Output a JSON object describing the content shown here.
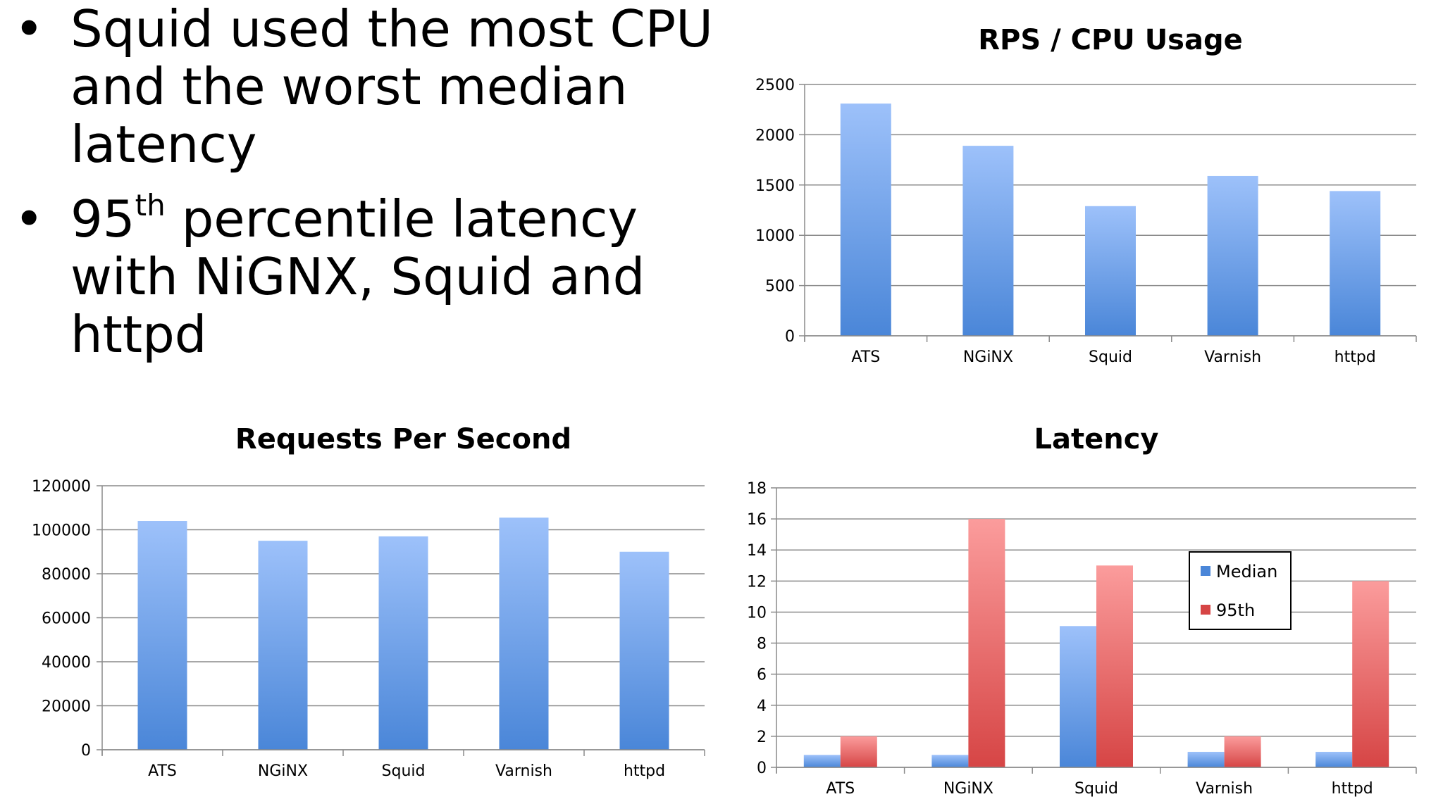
{
  "bullets": [
    {
      "text": "Squid used the most CPU and the worst median latency"
    },
    {
      "pre": "95",
      "sup": "th",
      "post": " percentile latency with NiGNX, Squid and httpd"
    }
  ],
  "colors": {
    "blue": "#4a86d8",
    "blue_light": "#9dc1fa",
    "red": "#d64545",
    "red_light": "#fb9c9c",
    "grid": "#8a8a8a"
  },
  "chart_data": [
    {
      "id": "rps-cpu",
      "type": "bar",
      "title": "RPS / CPU Usage",
      "categories": [
        "ATS",
        "NGiNX",
        "Squid",
        "Varnish",
        "httpd"
      ],
      "series": [
        {
          "values": [
            2310,
            1890,
            1290,
            1590,
            1440
          ]
        }
      ],
      "ylim": [
        0,
        2500
      ],
      "yticks": [
        0,
        500,
        1000,
        1500,
        2000,
        2500
      ],
      "grid": true,
      "legend": "none"
    },
    {
      "id": "rps",
      "type": "bar",
      "title": "Requests Per Second",
      "categories": [
        "ATS",
        "NGiNX",
        "Squid",
        "Varnish",
        "httpd"
      ],
      "series": [
        {
          "values": [
            104000,
            95000,
            97000,
            105500,
            90000
          ]
        }
      ],
      "ylim": [
        0,
        120000
      ],
      "yticks": [
        0,
        20000,
        40000,
        60000,
        80000,
        100000,
        120000
      ],
      "grid": true,
      "legend": "none"
    },
    {
      "id": "latency",
      "type": "bar",
      "title": "Latency",
      "categories": [
        "ATS",
        "NGiNX",
        "Squid",
        "Varnish",
        "httpd"
      ],
      "series": [
        {
          "name": "Median",
          "values": [
            0.8,
            0.8,
            9.1,
            1,
            1
          ]
        },
        {
          "name": "95th",
          "values": [
            2,
            16,
            13,
            2,
            12
          ]
        }
      ],
      "ylim": [
        0,
        18
      ],
      "yticks": [
        0,
        2,
        4,
        6,
        8,
        10,
        12,
        14,
        16,
        18
      ],
      "grid": true,
      "legend": "right"
    }
  ]
}
